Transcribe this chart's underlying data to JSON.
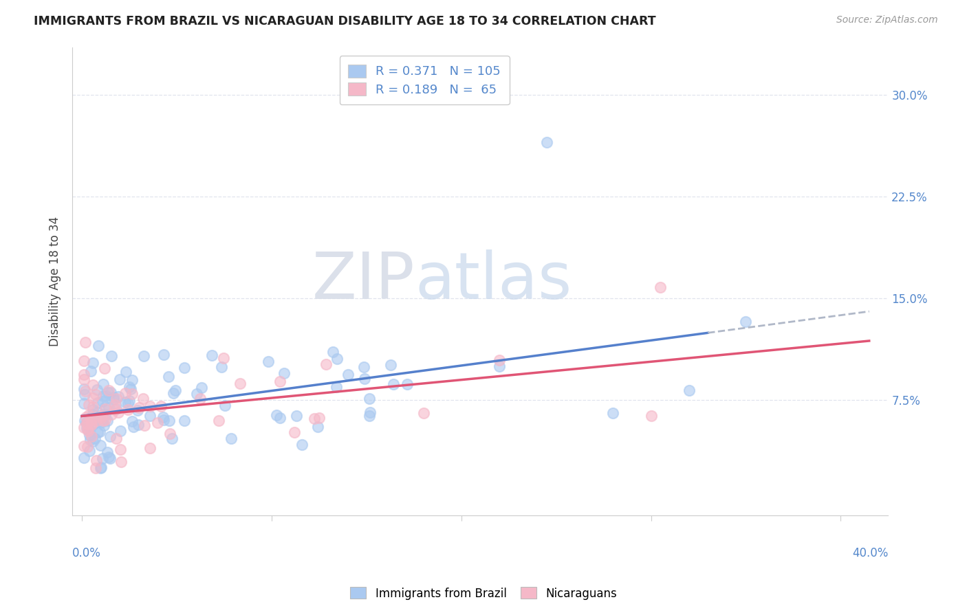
{
  "title": "IMMIGRANTS FROM BRAZIL VS NICARAGUAN DISABILITY AGE 18 TO 34 CORRELATION CHART",
  "source": "Source: ZipAtlas.com",
  "ylabel": "Disability Age 18 to 34",
  "ytick_vals": [
    0.075,
    0.15,
    0.225,
    0.3
  ],
  "ytick_labels": [
    "7.5%",
    "15.0%",
    "22.5%",
    "30.0%"
  ],
  "xtick_vals": [
    0.0,
    0.4
  ],
  "xtick_labels": [
    "0.0%",
    "40.0%"
  ],
  "xlim": [
    -0.005,
    0.425
  ],
  "ylim": [
    -0.01,
    0.335
  ],
  "legend_label1": "Immigrants from Brazil",
  "legend_label2": "Nicaraguans",
  "color_brazil": "#aac9f0",
  "color_nicaragua": "#f5b8c8",
  "trend_color_brazil": "#5580cc",
  "trend_color_nicaragua": "#e05575",
  "trend_color_ext": "#b0b8c8",
  "watermark_zip": "ZIP",
  "watermark_atlas": "atlas",
  "background_color": "#ffffff",
  "grid_color": "#e0e4ee",
  "ytick_color": "#5588cc"
}
